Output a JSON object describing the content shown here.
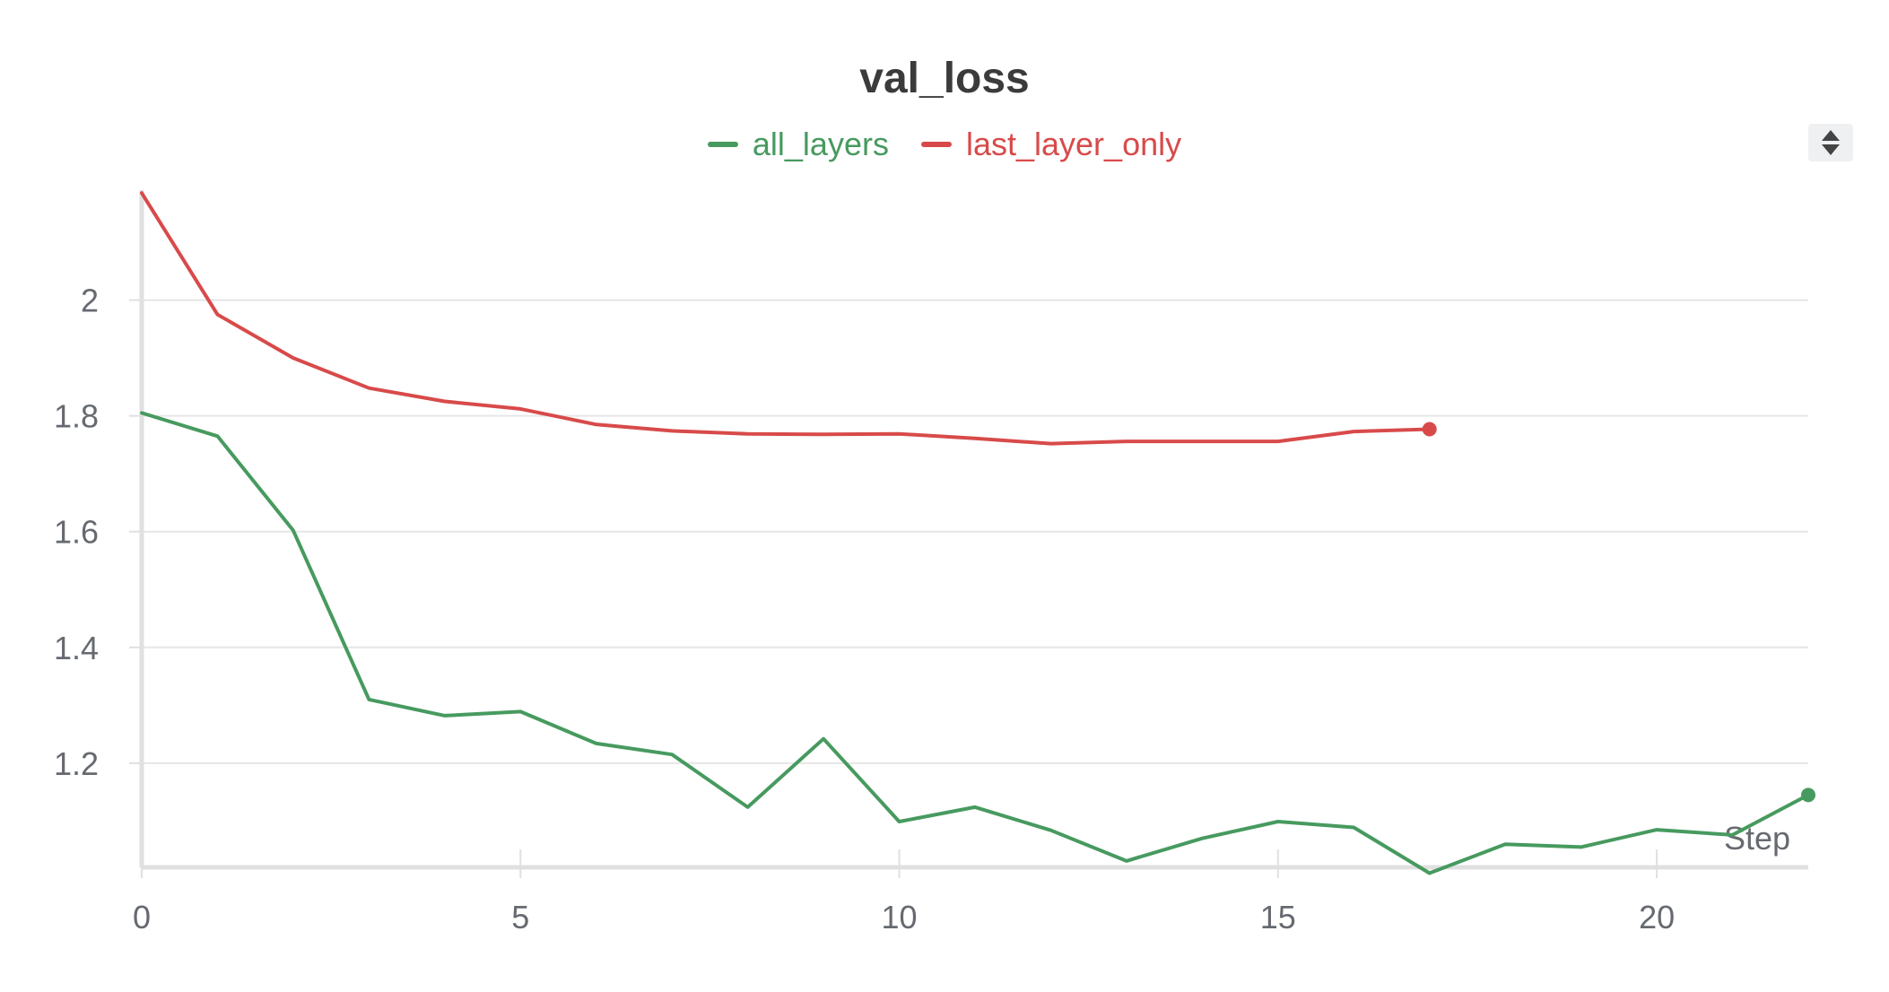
{
  "chart_data": {
    "type": "line",
    "title": "val_loss",
    "xlabel": "Step",
    "ylabel": "",
    "xlim": [
      0,
      22
    ],
    "ylim": [
      1.02,
      2.19
    ],
    "x_ticks": [
      0,
      5,
      10,
      15,
      20
    ],
    "y_ticks": [
      1.2,
      1.4,
      1.6,
      1.8,
      2
    ],
    "grid": "horizontal",
    "legend_placement": "top-center",
    "series": [
      {
        "name": "all_layers",
        "color": "#479a5f",
        "x": [
          0,
          1,
          2,
          3,
          4,
          5,
          6,
          7,
          8,
          9,
          10,
          11,
          12,
          13,
          14,
          15,
          16,
          17,
          18,
          19,
          20,
          21,
          22
        ],
        "y": [
          1.805,
          1.765,
          1.602,
          1.31,
          1.282,
          1.289,
          1.234,
          1.215,
          1.124,
          1.242,
          1.099,
          1.124,
          1.084,
          1.031,
          1.07,
          1.099,
          1.089,
          1.01,
          1.06,
          1.055,
          1.085,
          1.076,
          1.145
        ]
      },
      {
        "name": "last_layer_only",
        "color": "#d84a4a",
        "x": [
          0,
          1,
          2,
          3,
          4,
          5,
          6,
          7,
          8,
          9,
          10,
          11,
          12,
          13,
          14,
          15,
          16,
          17
        ],
        "y": [
          2.185,
          1.975,
          1.9,
          1.848,
          1.825,
          1.812,
          1.785,
          1.774,
          1.769,
          1.768,
          1.769,
          1.761,
          1.752,
          1.756,
          1.756,
          1.756,
          1.773,
          1.777
        ]
      }
    ]
  }
}
